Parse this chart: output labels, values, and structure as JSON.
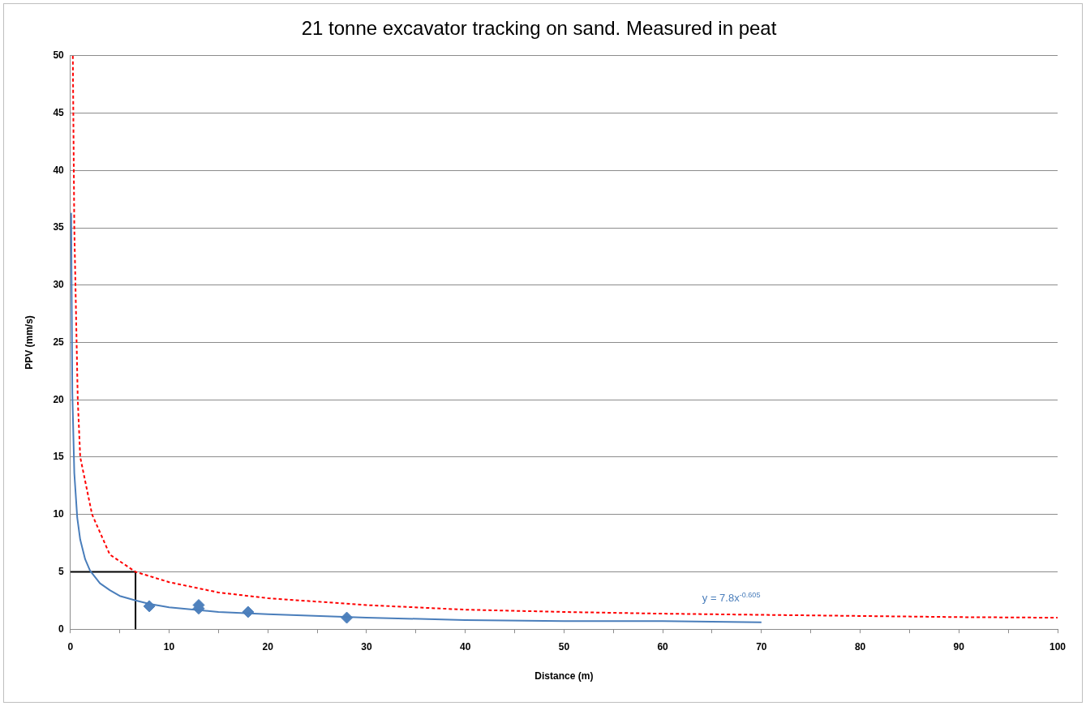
{
  "chart_data": {
    "type": "scatter",
    "title": "21 tonne excavator tracking on sand. Measured in peat",
    "xlabel": "Distance (m)",
    "ylabel": "PPV (mm/s)",
    "xlim": [
      0,
      100
    ],
    "xticks": [
      0,
      {
        "value": 5,
        "label": null
      },
      10,
      {
        "value": 15,
        "label": null
      },
      20,
      {
        "value": 25,
        "label": null
      },
      30,
      {
        "value": 35,
        "label": null
      },
      40,
      {
        "value": 45,
        "label": null
      },
      50,
      {
        "value": 55,
        "label": null
      },
      60,
      {
        "value": 65,
        "label": null
      },
      70,
      {
        "value": 75,
        "label": null
      },
      80,
      {
        "value": 85,
        "label": null
      },
      90,
      {
        "value": 95,
        "label": null
      },
      100
    ],
    "ylim": [
      0,
      50
    ],
    "yticks": [
      0,
      5,
      10,
      15,
      20,
      25,
      30,
      35,
      40,
      45,
      50
    ],
    "grid": "y",
    "legend": false,
    "series": [
      {
        "type": "line",
        "color": "#ff0000",
        "line_style": "dashed",
        "marker": "none",
        "x": [
          0.25,
          0.4,
          0.75,
          1,
          2.2,
          4,
          6.6,
          10,
          15,
          20,
          30,
          40,
          50,
          60,
          70,
          80,
          90,
          100
        ],
        "values": [
          50,
          35,
          20,
          15,
          10,
          6.5,
          5,
          4.1,
          3.2,
          2.7,
          2.1,
          1.7,
          1.5,
          1.35,
          1.25,
          1.15,
          1.05,
          1
        ]
      },
      {
        "type": "line",
        "color": "#4a7ebb",
        "line_style": "solid",
        "marker": "none",
        "x": [
          0.08,
          0.2,
          0.4,
          0.7,
          1,
          1.5,
          2,
          3,
          4,
          5,
          6.6,
          8,
          10,
          15,
          20,
          30,
          40,
          50,
          60,
          70
        ],
        "values": [
          36.3,
          20.6,
          13.6,
          9.7,
          7.8,
          6.1,
          5.1,
          4,
          3.4,
          2.9,
          2.5,
          2.2,
          1.9,
          1.5,
          1.3,
          1,
          0.8,
          0.7,
          0.7,
          0.6
        ]
      },
      {
        "type": "line",
        "color": "#000000",
        "line_style": "solid",
        "marker": "none",
        "x": [
          0,
          6.6,
          6.6
        ],
        "values": [
          5,
          5,
          0
        ]
      },
      {
        "type": "scatter",
        "color": "#4f81bd",
        "marker": "diamond",
        "x": [
          8,
          13,
          13,
          18,
          28
        ],
        "values": [
          2,
          2.1,
          1.8,
          1.5,
          1
        ]
      }
    ],
    "annotations": [
      "y = 7.8x$^{-0.605}$"
    ]
  }
}
